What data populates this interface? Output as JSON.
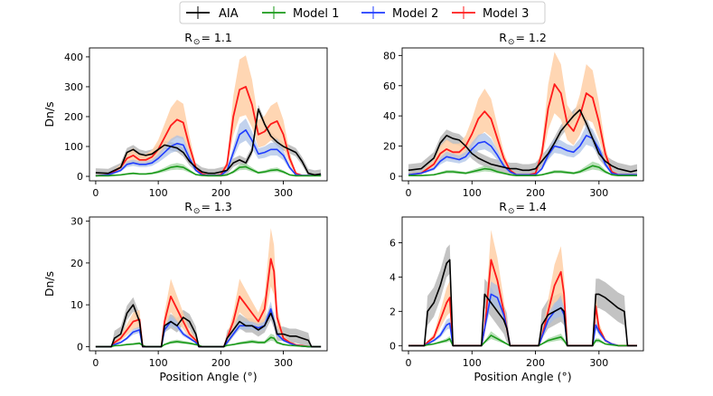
{
  "legend": {
    "entries": [
      {
        "name": "AIA",
        "color": "#000000"
      },
      {
        "name": "Model 1",
        "color": "#1a9a1a"
      },
      {
        "name": "Model 2",
        "color": "#1f3cff"
      },
      {
        "name": "Model 3",
        "color": "#ff1a1a"
      }
    ],
    "placement": "top-center"
  },
  "colors": {
    "aia_band": "#a9a9a9",
    "model2_band": "#a8bfe6",
    "model3_band": "#ffcfa6",
    "model1_band": "#9bd39b"
  },
  "chart_data": [
    {
      "type": "line",
      "title": "R",
      "title_symbol": "⊙",
      "title_value": "= 1.1",
      "xlabel": "",
      "ylabel": "Dn/s",
      "xlim": [
        -10,
        370
      ],
      "ylim": [
        -15,
        430
      ],
      "xticks": [
        0,
        100,
        200,
        300
      ],
      "yticks": [
        0,
        100,
        200,
        300,
        400
      ],
      "x": [
        0,
        20,
        40,
        50,
        60,
        70,
        80,
        90,
        100,
        110,
        120,
        130,
        140,
        150,
        160,
        170,
        180,
        190,
        200,
        210,
        220,
        230,
        240,
        250,
        260,
        270,
        280,
        290,
        300,
        310,
        320,
        330,
        340,
        350,
        360
      ],
      "series": [
        {
          "name": "AIA",
          "values": [
            12,
            10,
            30,
            80,
            90,
            75,
            70,
            75,
            90,
            105,
            100,
            95,
            80,
            50,
            30,
            15,
            10,
            10,
            15,
            20,
            45,
            55,
            45,
            85,
            225,
            175,
            135,
            115,
            100,
            90,
            80,
            50,
            10,
            5,
            8
          ],
          "err": 15
        },
        {
          "name": "Model 1",
          "values": [
            2,
            2,
            5,
            8,
            10,
            8,
            8,
            10,
            15,
            22,
            30,
            33,
            30,
            18,
            6,
            3,
            2,
            2,
            2,
            5,
            15,
            30,
            32,
            22,
            12,
            15,
            20,
            22,
            15,
            5,
            2,
            2,
            2,
            2,
            2
          ],
          "err_frac": 0.35
        },
        {
          "name": "Model 2",
          "values": [
            2,
            5,
            20,
            40,
            45,
            40,
            40,
            45,
            60,
            80,
            100,
            110,
            105,
            60,
            20,
            5,
            3,
            3,
            3,
            20,
            80,
            140,
            155,
            120,
            75,
            80,
            90,
            90,
            70,
            30,
            5,
            3,
            3,
            3,
            3
          ],
          "err_frac": 0.25
        },
        {
          "name": "Model 3",
          "values": [
            2,
            5,
            30,
            60,
            70,
            55,
            55,
            65,
            90,
            130,
            170,
            190,
            180,
            100,
            30,
            8,
            3,
            3,
            5,
            40,
            200,
            290,
            300,
            240,
            140,
            150,
            175,
            185,
            140,
            60,
            10,
            3,
            3,
            3,
            3
          ],
          "err_frac": 0.35
        }
      ]
    },
    {
      "type": "line",
      "title": "R",
      "title_symbol": "⊙",
      "title_value": "= 1.2",
      "xlabel": "",
      "ylabel": "",
      "xlim": [
        -10,
        370
      ],
      "ylim": [
        -3,
        85
      ],
      "xticks": [
        0,
        100,
        200,
        300
      ],
      "yticks": [
        0,
        20,
        40,
        60,
        80
      ],
      "x": [
        0,
        20,
        40,
        50,
        60,
        70,
        80,
        90,
        100,
        110,
        120,
        130,
        140,
        150,
        160,
        170,
        180,
        190,
        200,
        210,
        220,
        230,
        240,
        250,
        260,
        270,
        280,
        290,
        300,
        310,
        320,
        330,
        340,
        350,
        360
      ],
      "series": [
        {
          "name": "AIA",
          "values": [
            4,
            5,
            12,
            22,
            27,
            25,
            24,
            20,
            15,
            12,
            10,
            8,
            7,
            6,
            5,
            5,
            4,
            4,
            5,
            10,
            15,
            22,
            30,
            35,
            40,
            44,
            35,
            25,
            15,
            10,
            7,
            5,
            4,
            3,
            4
          ],
          "err": 4
        },
        {
          "name": "Model 1",
          "values": [
            0.5,
            0.5,
            1,
            2,
            3,
            3,
            2.5,
            2,
            3,
            4,
            5,
            4.5,
            3,
            2,
            1,
            0.5,
            0.5,
            0.5,
            0.5,
            1,
            2,
            3,
            3,
            2.5,
            2,
            3,
            5,
            7,
            6,
            3,
            1,
            0.5,
            0.5,
            0.5,
            0.5
          ],
          "err_frac": 0.4
        },
        {
          "name": "Model 2",
          "values": [
            1,
            2,
            5,
            10,
            13,
            12,
            11,
            13,
            18,
            22,
            23,
            20,
            14,
            7,
            3,
            1,
            1,
            1,
            1,
            5,
            14,
            20,
            19,
            17,
            16,
            20,
            27,
            25,
            18,
            8,
            2,
            1,
            1,
            1,
            1
          ],
          "err_frac": 0.25
        },
        {
          "name": "Model 3",
          "values": [
            1,
            2,
            8,
            15,
            18,
            16,
            16,
            20,
            28,
            38,
            43,
            38,
            25,
            12,
            4,
            1,
            1,
            1,
            2,
            15,
            45,
            61,
            55,
            35,
            30,
            40,
            55,
            52,
            36,
            15,
            3,
            1,
            1,
            1,
            1
          ],
          "err_frac": 0.35
        }
      ]
    },
    {
      "type": "line",
      "title": "R",
      "title_symbol": "⊙",
      "title_value": "= 1.3",
      "xlabel": "Position Angle (°)",
      "ylabel": "Dn/s",
      "xlim": [
        -10,
        370
      ],
      "ylim": [
        -1,
        31
      ],
      "xticks": [
        0,
        100,
        200,
        300
      ],
      "yticks": [
        0,
        10,
        20,
        30
      ],
      "x": [
        0,
        25,
        30,
        40,
        50,
        60,
        70,
        75,
        80,
        100,
        105,
        110,
        120,
        130,
        140,
        150,
        160,
        165,
        170,
        200,
        205,
        210,
        220,
        230,
        240,
        250,
        260,
        270,
        280,
        285,
        290,
        300,
        310,
        320,
        330,
        340,
        345,
        350,
        360
      ],
      "series": [
        {
          "name": "AIA",
          "values": [
            0,
            0,
            2,
            3,
            8,
            10,
            6,
            0,
            0,
            0,
            0,
            5,
            6,
            5,
            7,
            6,
            3,
            0,
            0,
            0,
            0,
            2,
            4,
            6,
            5,
            5,
            4,
            5,
            8,
            6,
            3,
            3,
            2.5,
            2.5,
            2,
            1.5,
            0,
            0,
            0
          ],
          "err": 1.8
        },
        {
          "name": "Model 1",
          "values": [
            0,
            0,
            0.2,
            0.3,
            0.5,
            0.6,
            0.8,
            0.3,
            0,
            0,
            0,
            0.5,
            1,
            1.2,
            1,
            0.8,
            0.5,
            0.3,
            0,
            0,
            0,
            0.3,
            0.5,
            0.8,
            1,
            1.2,
            1,
            1,
            2.2,
            2,
            1,
            0.5,
            0.3,
            0.2,
            0.1,
            0,
            0,
            0,
            0
          ],
          "err_frac": 0.4
        },
        {
          "name": "Model 2",
          "values": [
            0,
            0,
            0.5,
            1,
            2,
            3.5,
            4,
            0,
            0,
            0,
            0,
            4,
            6,
            5,
            3,
            2,
            1,
            0,
            0,
            0,
            0,
            1,
            3,
            5,
            5,
            5,
            4.5,
            5,
            9,
            6,
            3,
            1.5,
            0.8,
            0.3,
            0.1,
            0,
            0,
            0,
            0
          ],
          "err_frac": 0.2
        },
        {
          "name": "Model 3",
          "values": [
            0,
            0,
            1,
            2,
            4,
            6,
            6.5,
            0,
            0,
            0,
            0,
            6,
            12,
            9,
            6,
            3,
            1.5,
            0,
            0,
            0,
            0,
            2,
            6,
            12,
            10,
            8,
            6,
            9,
            21,
            18,
            7,
            2,
            1,
            0.4,
            0.2,
            0,
            0,
            0,
            0
          ],
          "err_frac": 0.35
        }
      ]
    },
    {
      "type": "line",
      "title": "R",
      "title_symbol": "⊙",
      "title_value": "= 1.4",
      "xlabel": "Position Angle (°)",
      "ylabel": "",
      "xlim": [
        -10,
        370
      ],
      "ylim": [
        -0.3,
        7.5
      ],
      "xticks": [
        0,
        100,
        200,
        300
      ],
      "yticks": [
        0,
        2,
        4,
        6
      ],
      "x": [
        0,
        25,
        30,
        40,
        50,
        60,
        65,
        70,
        110,
        115,
        120,
        130,
        140,
        150,
        155,
        160,
        200,
        205,
        210,
        220,
        230,
        240,
        245,
        250,
        285,
        290,
        295,
        300,
        310,
        320,
        330,
        340,
        345,
        360
      ],
      "series": [
        {
          "name": "AIA",
          "values": [
            0,
            0,
            2,
            2.5,
            3.5,
            4.8,
            5,
            0,
            0,
            0,
            3,
            2.5,
            2,
            1.5,
            1,
            0,
            0,
            0,
            1.2,
            1.8,
            2,
            2.2,
            2,
            0,
            0,
            0,
            3,
            3,
            2.8,
            2.5,
            2.2,
            2,
            0,
            0
          ],
          "err": 0.9
        },
        {
          "name": "Model 1",
          "values": [
            0,
            0,
            0.05,
            0.1,
            0.2,
            0.3,
            0.4,
            0,
            0,
            0,
            0.2,
            0.6,
            0.4,
            0.2,
            0.1,
            0,
            0,
            0,
            0.1,
            0.3,
            0.4,
            0.5,
            0.3,
            0,
            0,
            0,
            0.3,
            0.3,
            0.1,
            0.05,
            0,
            0,
            0,
            0
          ],
          "err_frac": 0.4
        },
        {
          "name": "Model 2",
          "values": [
            0,
            0,
            0.1,
            0.3,
            0.6,
            1.2,
            1.3,
            0,
            0,
            0,
            1,
            3,
            2.8,
            1.8,
            1,
            0,
            0,
            0,
            0.5,
            1.5,
            2,
            2.2,
            1.8,
            0,
            0,
            0,
            1.2,
            0.8,
            0.3,
            0.1,
            0,
            0,
            0,
            0
          ],
          "err_frac": 0.25
        },
        {
          "name": "Model 3",
          "values": [
            0,
            0,
            0.2,
            0.5,
            1.5,
            2.5,
            2.8,
            0,
            0,
            0,
            1,
            5,
            3.8,
            2,
            1,
            0,
            0,
            0,
            0.5,
            2,
            3.5,
            4.3,
            3,
            0,
            0,
            0,
            2.3,
            1,
            0.3,
            0.1,
            0,
            0,
            0,
            0
          ],
          "err_frac": 0.35
        }
      ]
    }
  ]
}
